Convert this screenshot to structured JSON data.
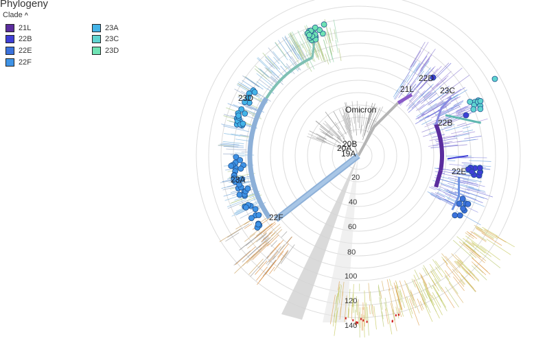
{
  "panel": {
    "title": "Phylogeny",
    "clade_toggle": "Clade"
  },
  "legend": [
    {
      "label": "21L",
      "color": "#5b2d9e"
    },
    {
      "label": "22B",
      "color": "#3f3fd6"
    },
    {
      "label": "22E",
      "color": "#3b72dc"
    },
    {
      "label": "22F",
      "color": "#3f93e6"
    },
    {
      "label": "23A",
      "color": "#44b4e8"
    },
    {
      "label": "23C",
      "color": "#5fd4d0"
    },
    {
      "label": "23D",
      "color": "#6fe3b4"
    }
  ],
  "tree": {
    "clade_labels": [
      "Omicron",
      "20B",
      "20A",
      "19A",
      "21L",
      "22D",
      "23C",
      "22B",
      "22E",
      "23D",
      "23A",
      "22F"
    ],
    "radial_ticks": [
      "20",
      "40",
      "60",
      "80",
      "100",
      "120",
      "140"
    ]
  }
}
